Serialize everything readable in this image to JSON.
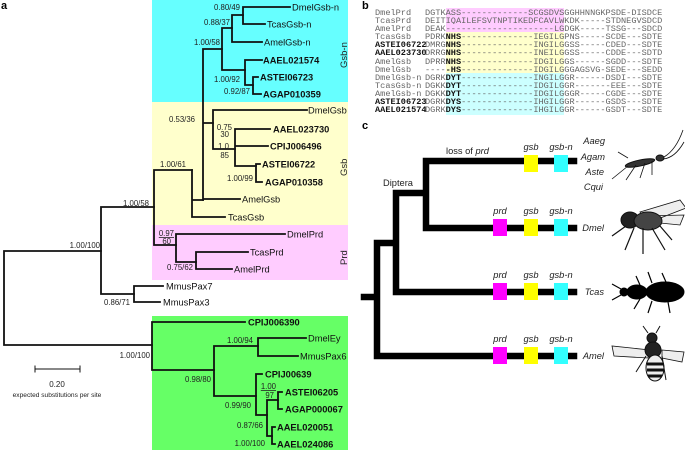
{
  "panel_labels": {
    "a": "a",
    "b": "b",
    "c": "c"
  },
  "colors": {
    "gsb_n": "#66ffff",
    "gsb": "#ffffcc",
    "prd": "#ffccff",
    "pax6": "#66ff66",
    "prd_box": "#ff00ff",
    "gsb_box": "#ffff00",
    "gsbn_box": "#33ffff"
  },
  "tree": {
    "leaves": {
      "DmelGsb_n": "DmelGsb-n",
      "TcasGsb_n": "TcasGsb-n",
      "AmelGsb_n": "AmelGsb-n",
      "AAEL021574": "AAEL021574",
      "ASTEI06723": "ASTEI06723",
      "AGAP010359": "AGAP010359",
      "DmelGsb": "DmelGsb",
      "AAEL023730": "AAEL023730",
      "CPIJ006496": "CPIJ006496",
      "ASTEI06722": "ASTEI06722",
      "AGAP010358": "AGAP010358",
      "AmelGsb": "AmelGsb",
      "TcasGsb": "TcasGsb",
      "DmelPrd": "DmelPrd",
      "TcasPrd": "TcasPrd",
      "AmelPrd": "AmelPrd",
      "MmusPax7": "MmusPax7",
      "MmusPax3": "MmusPax3",
      "CPIJ006390": "CPIJ006390",
      "DmelEy": "DmelEy",
      "MmusPax6": "MmusPax6",
      "CPIJ00639": "CPIJ00639",
      "ASTEI06205": "ASTEI06205",
      "AGAP000067": "AGAP000067",
      "AAEL020051": "AAEL020051",
      "AAEL024086": "AAEL024086"
    },
    "support": {
      "s1": "0.80/49",
      "s2": "0.88/37",
      "s3": "1.00/58",
      "s4": "1.00/92",
      "s5": "0.92/87",
      "s6": "0.53/36",
      "s7_top": "0.75",
      "s7_bot": "30",
      "s8_top": "1.0",
      "s8_bot": "85",
      "s9": "1.00/99",
      "s10": "1.00/61",
      "s11": "1.00/58",
      "s12": "1.00/100",
      "s13_top": "0.97",
      "s13_bot": "60",
      "s14": "0.75/62",
      "s15": "0.86/71",
      "s16": "1.00/100",
      "s17": "1.00/94",
      "s18": "0.98/80",
      "s19_top": "1.00",
      "s19_bot": "97",
      "s20": "0.99/90",
      "s21": "0.87/66",
      "s22": "1.00/100"
    },
    "clades": {
      "gsb_n": "Gsb-n",
      "gsb": "Gsb",
      "prd": "Prd"
    },
    "scale": {
      "value": "0.20",
      "label": "expected substitutions per site"
    }
  },
  "alignment": [
    {
      "name": "DmelPrd",
      "bold": false,
      "seq": "DGTKASS-------------SCGSDVSGGHHNNGKPSDE-DISDCE",
      "group": "prd"
    },
    {
      "name": "TcasPrd",
      "bold": false,
      "seq": "DEITIQAILEFSVTNPTIKEDFCAVLWKDK-----STDNEGVSDCD",
      "group": "prd"
    },
    {
      "name": "AmelPrd",
      "bold": false,
      "seq": "DEAK---------------------LGDGK-----TSSG---SDCD",
      "group": "prd"
    },
    {
      "name": "TcasGsb",
      "bold": false,
      "seq": "PDRKNHS--------------IEGILGPNS-----SCDE---SDTE",
      "group": "gsb"
    },
    {
      "name": "ASTEI06722",
      "bold": true,
      "seq": "DMRGNHS--------------INGILGGSS-----CDED---SDTE",
      "group": "gsb"
    },
    {
      "name": "AAEL023730",
      "bold": true,
      "seq": "DRRGNHS--------------INEILGGSS-----CDDE---SDTD",
      "group": "gsb"
    },
    {
      "name": "AmelGsb",
      "bold": false,
      "seq": "DPRRNHS--------------IDGILGGS------SGDD---SDTE",
      "group": "gsb"
    },
    {
      "name": "DmelGsb",
      "bold": false,
      "seq": "-----HS--------------IDGILGGGAGSVG-SEDE---SEDD",
      "group": "gsb"
    },
    {
      "name": "DmelGsb-n",
      "bold": false,
      "seq": "DGRKDYT--------------INGILGGR------DSDI---SDTE",
      "group": "gsbn"
    },
    {
      "name": "TcasGsb-n",
      "bold": false,
      "seq": "DGKKDYT--------------IDGILGGR-------EEE---SDTE",
      "group": "gsbn"
    },
    {
      "name": "AmelGsb-n",
      "bold": false,
      "seq": "DGKKDYT--------------IDGILGGGR-----CGDE---SDTE",
      "group": "gsbn"
    },
    {
      "name": "ASTEI06723",
      "bold": true,
      "seq": "DGRKDYS--------------IHGILGGR------GSDS---SDTE",
      "group": "gsbn"
    },
    {
      "name": "AAEL021574",
      "bold": true,
      "seq": "DGRKDYS--------------IHGILGGR------GSDT---SDTE",
      "group": "gsbn"
    }
  ],
  "panel_c": {
    "loss_prefix": "loss of ",
    "loss_gene": "prd",
    "diptera": "Diptera",
    "genes": {
      "prd": "prd",
      "gsb": "gsb",
      "gsbn": "gsb-n"
    },
    "species": {
      "aaeg": "Aaeg",
      "agam": "Agam",
      "aste": "Aste",
      "cqui": "Cqui",
      "dmel": "Dmel",
      "tcas": "Tcas",
      "amel": "Amel"
    },
    "icons": [
      "mosquito-icon",
      "fly-icon",
      "beetle-icon",
      "bee-icon"
    ]
  }
}
